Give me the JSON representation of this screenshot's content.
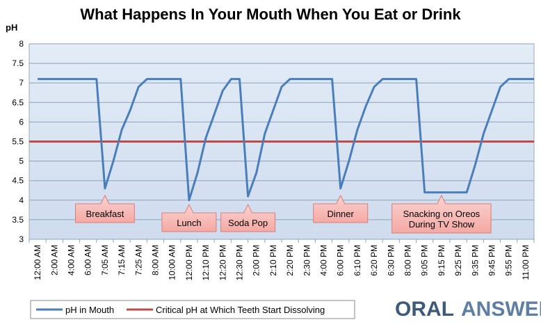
{
  "chart_data": {
    "type": "line",
    "title": "What Happens In Your Mouth When You Eat or Drink",
    "ylabel": "pH",
    "xlabel": "",
    "ylim": [
      3,
      8
    ],
    "yticks": [
      3,
      3.5,
      4,
      4.5,
      5,
      5.5,
      6,
      6.5,
      7,
      7.5,
      8
    ],
    "grid": true,
    "legend_position": "bottom-left",
    "x_tick_labels": [
      "12:00 AM",
      "2:00 AM",
      "4:00 AM",
      "6:00 AM",
      "7:05 AM",
      "7:15 AM",
      "7:25 AM",
      "8:00 AM",
      "10:00 AM",
      "12:00 PM",
      "12:10 PM",
      "12:20 PM",
      "12:30 PM",
      "2:00 PM",
      "2:10 PM",
      "2:20 PM",
      "2:30 PM",
      "4:00 PM",
      "6:00 PM",
      "6:10 PM",
      "6:20 PM",
      "6:30 PM",
      "8:00 PM",
      "9:05 PM",
      "9:15 PM",
      "9:25 PM",
      "9:35 PM",
      "9:45 PM",
      "9:55 PM",
      "11:00 PM"
    ],
    "series": [
      {
        "name": "pH in Mouth",
        "color": "#4a7ebb",
        "points": [
          [
            0,
            7.1
          ],
          [
            1,
            7.1
          ],
          [
            2,
            7.1
          ],
          [
            3,
            7.1
          ],
          [
            3.5,
            7.1
          ],
          [
            4,
            4.3
          ],
          [
            4.5,
            5.0
          ],
          [
            5,
            5.8
          ],
          [
            5.5,
            6.3
          ],
          [
            6,
            6.9
          ],
          [
            6.5,
            7.1
          ],
          [
            7,
            7.1
          ],
          [
            8,
            7.1
          ],
          [
            8.5,
            7.1
          ],
          [
            9,
            4.0
          ],
          [
            9.5,
            4.7
          ],
          [
            10,
            5.6
          ],
          [
            10.5,
            6.2
          ],
          [
            11,
            6.8
          ],
          [
            11.5,
            7.1
          ],
          [
            12,
            7.1
          ],
          [
            12.5,
            4.1
          ],
          [
            13,
            4.7
          ],
          [
            13.5,
            5.7
          ],
          [
            14,
            6.3
          ],
          [
            14.5,
            6.9
          ],
          [
            15,
            7.1
          ],
          [
            16,
            7.1
          ],
          [
            17,
            7.1
          ],
          [
            17.5,
            7.1
          ],
          [
            18,
            4.3
          ],
          [
            18.5,
            5.0
          ],
          [
            19,
            5.8
          ],
          [
            19.5,
            6.4
          ],
          [
            20,
            6.9
          ],
          [
            20.5,
            7.1
          ],
          [
            21,
            7.1
          ],
          [
            22,
            7.1
          ],
          [
            22.5,
            7.1
          ],
          [
            23,
            4.2
          ],
          [
            24,
            4.2
          ],
          [
            25,
            4.2
          ],
          [
            25.5,
            4.2
          ],
          [
            26,
            4.9
          ],
          [
            26.5,
            5.7
          ],
          [
            27,
            6.3
          ],
          [
            27.5,
            6.9
          ],
          [
            28,
            7.1
          ],
          [
            29,
            7.1
          ],
          [
            29.5,
            7.1
          ]
        ]
      },
      {
        "name": "Critical pH at Which Teeth Start Dissolving",
        "color": "#be4b48",
        "points": [
          [
            -0.5,
            5.5
          ],
          [
            29.5,
            5.5
          ]
        ]
      }
    ],
    "annotations": [
      {
        "key": "breakfast",
        "text": "Breakfast",
        "x": 4,
        "lines": [
          "Breakfast"
        ]
      },
      {
        "key": "lunch",
        "text": "Lunch",
        "x": 9,
        "lines": [
          "Lunch"
        ]
      },
      {
        "key": "soda",
        "text": "Soda Pop",
        "x": 12.5,
        "lines": [
          "Soda Pop"
        ]
      },
      {
        "key": "dinner",
        "text": "Dinner",
        "x": 18,
        "lines": [
          "Dinner"
        ]
      },
      {
        "key": "snacking",
        "text": "Snacking on Oreos During TV Show",
        "x": 24,
        "lines": [
          "Snacking on Oreos",
          "During TV Show"
        ]
      }
    ]
  },
  "brand": {
    "oral": "ORAL",
    "answers": "ANSWERS"
  }
}
